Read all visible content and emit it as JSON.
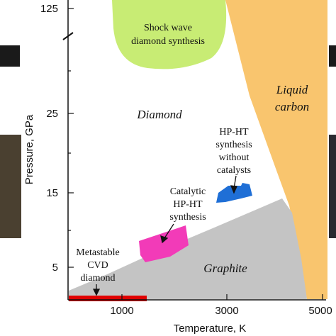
{
  "axes": {
    "y_label": "Pressure, GPa",
    "x_label": "Temperature, K",
    "y_ticks": [
      "125",
      "25",
      "15",
      "5"
    ],
    "x_ticks": [
      "1000",
      "3000",
      "5000"
    ]
  },
  "regions": {
    "shock_wave": [
      "Shock wave",
      "diamond synthesis"
    ],
    "diamond": "Diamond",
    "liquid": [
      "Liquid",
      "carbon"
    ],
    "hpht_no_catalyst": [
      "HP-HT",
      "synthesis",
      "without",
      "catalysts"
    ],
    "hpht_catalytic": [
      "Catalytic",
      "HP-HT",
      "synthesis"
    ],
    "cvd": [
      "Metastable",
      "CVD",
      "diamond"
    ],
    "graphite": "Graphite"
  }
}
